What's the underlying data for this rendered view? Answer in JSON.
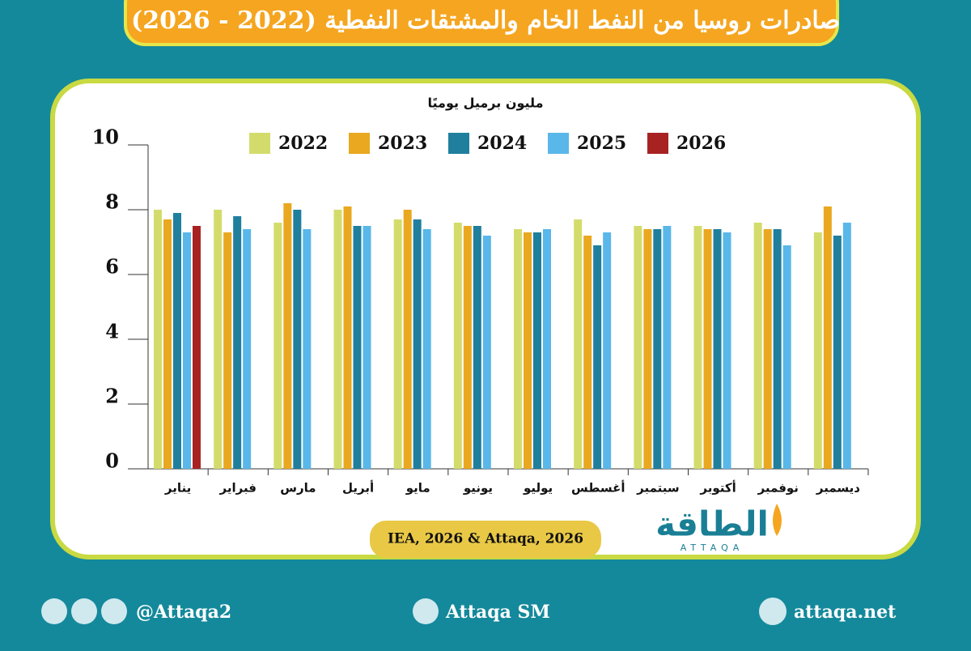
{
  "chart_data": {
    "type": "bar",
    "title": "صادرات روسيا من النفط الخام والمشتقات النفطية (2022 - 2026)",
    "y_label": "مليون برميل يوميًا",
    "categories": [
      "يناير",
      "فبراير",
      "مارس",
      "أبريل",
      "مايو",
      "يونيو",
      "يوليو",
      "أغسطس",
      "سبتمبر",
      "أكتوبر",
      "نوفمبر",
      "ديسمبر"
    ],
    "series": [
      {
        "name": "2022",
        "color": "#d3dc6b",
        "values": [
          8.0,
          8.0,
          7.6,
          8.0,
          7.7,
          7.6,
          7.4,
          7.7,
          7.5,
          7.5,
          7.6,
          7.3
        ]
      },
      {
        "name": "2023",
        "color": "#e9a81f",
        "values": [
          7.7,
          7.3,
          8.2,
          8.1,
          8.0,
          7.5,
          7.3,
          7.2,
          7.4,
          7.4,
          7.4,
          8.1
        ]
      },
      {
        "name": "2024",
        "color": "#1f7f9d",
        "values": [
          7.9,
          7.8,
          8.0,
          7.5,
          7.7,
          7.5,
          7.3,
          6.9,
          7.4,
          7.4,
          7.4,
          7.2
        ]
      },
      {
        "name": "2025",
        "color": "#5ab7e9",
        "values": [
          7.3,
          7.4,
          7.4,
          7.5,
          7.4,
          7.2,
          7.4,
          7.3,
          7.5,
          7.3,
          6.9,
          7.6
        ]
      },
      {
        "name": "2026",
        "color": "#a82222",
        "values": [
          7.5,
          null,
          null,
          null,
          null,
          null,
          null,
          null,
          null,
          null,
          null,
          null
        ]
      }
    ],
    "ylim": [
      0,
      10
    ],
    "yticks": [
      0,
      2,
      4,
      6,
      8,
      10
    ],
    "grid": false,
    "legend": "top"
  },
  "source": "IEA, 2026 & Attaqa, 2026",
  "logo": {
    "name": "الطاقة",
    "latin": "ATTAQA"
  },
  "footer": {
    "social": "@Attaqa2",
    "youtube": "Attaqa SM",
    "website": "attaqa.net"
  }
}
